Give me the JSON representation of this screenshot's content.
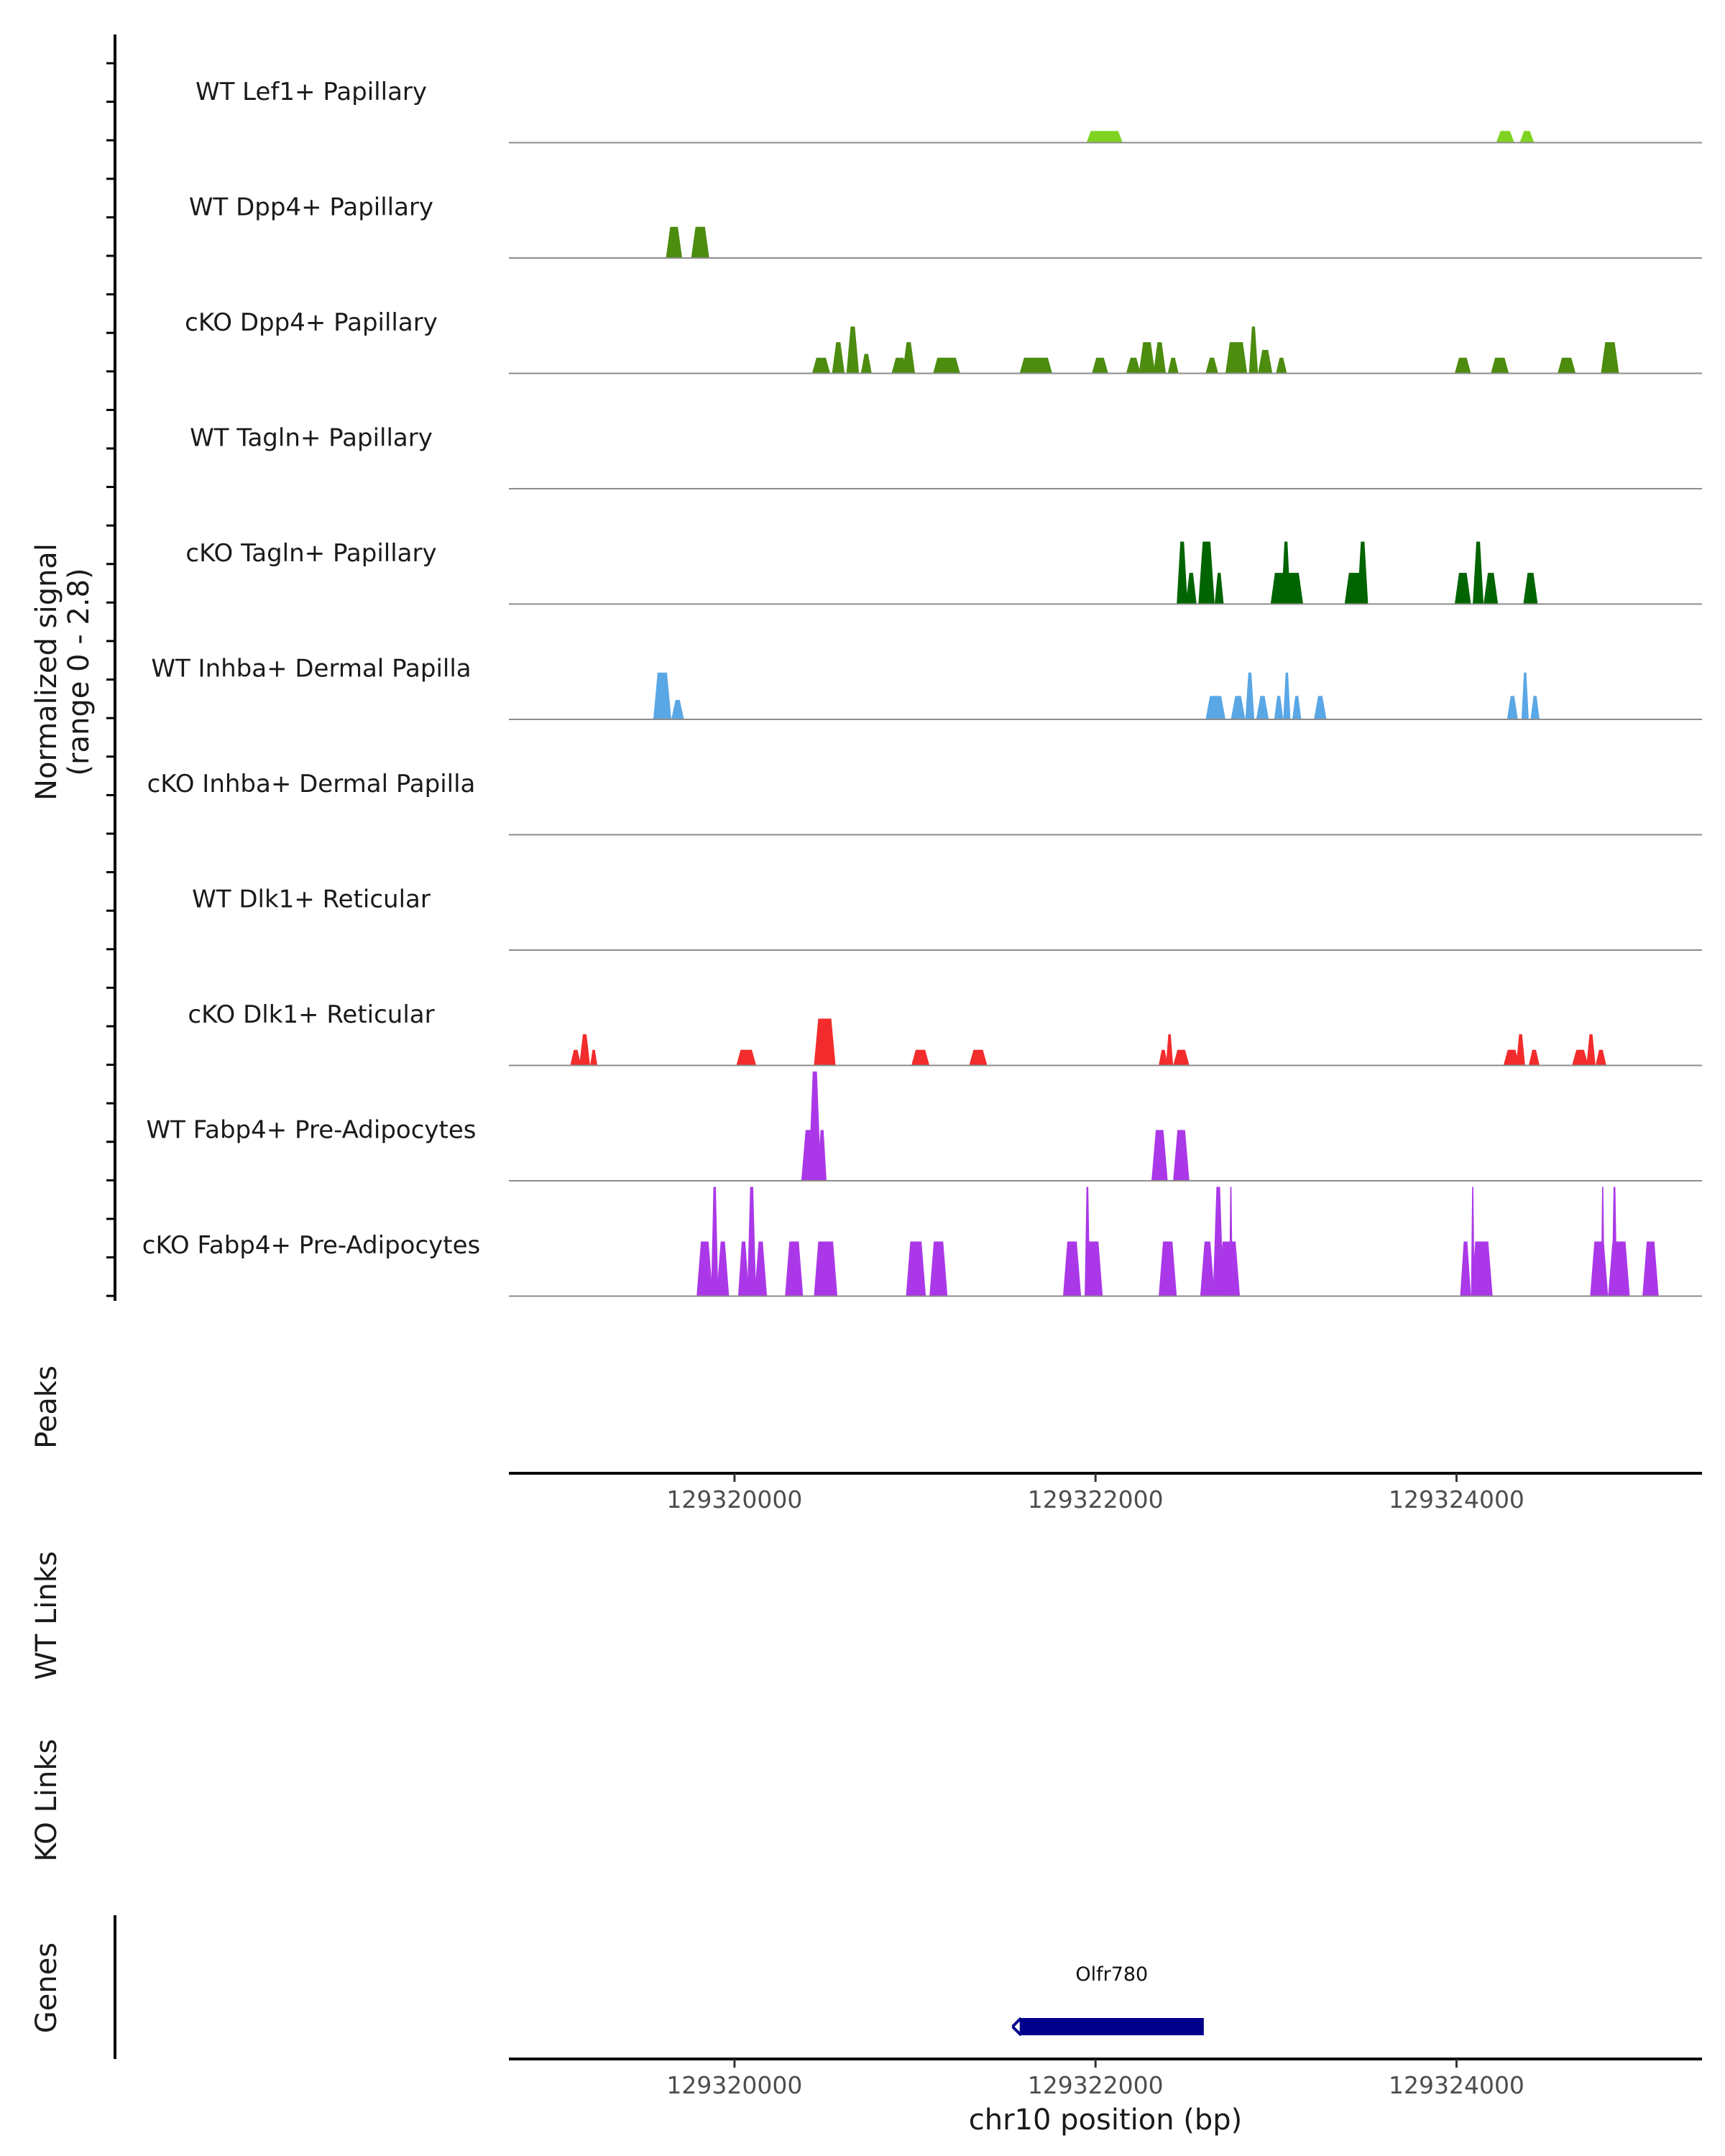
{
  "chart_data": {
    "type": "area",
    "title": "",
    "chromosome": "chr10",
    "xlim": [
      129318750,
      129325360
    ],
    "xlabel": "chr10 position (bp)",
    "ylabel": "Normalized signal\n(range 0 - 2.8)",
    "ylabel_line1": "Normalized signal",
    "ylabel_line2": "(range 0 - 2.8)",
    "ylim": [
      0,
      2.8
    ],
    "xticks": [
      129320000,
      129322000,
      129324000
    ],
    "xtick_labels": [
      "129320000",
      "129322000",
      "129324000"
    ],
    "tracks": [
      {
        "name": "WT Lef1+ Papillary",
        "color": "#7FD320",
        "peaks": [
          [
            129321950,
            129322150,
            0.3
          ],
          [
            129324220,
            129324320,
            0.3
          ],
          [
            129324350,
            129324430,
            0.3
          ]
        ]
      },
      {
        "name": "WT Dpp4+ Papillary",
        "color": "#4C8C0E",
        "peaks": [
          [
            129319620,
            129319710,
            0.8
          ],
          [
            129319760,
            129319860,
            0.8
          ]
        ]
      },
      {
        "name": "cKO Dpp4+ Papillary",
        "color": "#4C8C0E",
        "peaks": [
          [
            129320430,
            129320530,
            0.4
          ],
          [
            129320540,
            129320610,
            0.8
          ],
          [
            129320620,
            129320690,
            1.2
          ],
          [
            129320700,
            129320760,
            0.5
          ],
          [
            129320870,
            129320960,
            0.4
          ],
          [
            129320930,
            129321000,
            0.8
          ],
          [
            129321100,
            129321250,
            0.4
          ],
          [
            129321580,
            129321760,
            0.4
          ],
          [
            129321980,
            129322070,
            0.4
          ],
          [
            129322170,
            129322250,
            0.4
          ],
          [
            129322240,
            129322330,
            0.8
          ],
          [
            129322320,
            129322390,
            0.8
          ],
          [
            129322400,
            129322460,
            0.4
          ],
          [
            129322610,
            129322680,
            0.4
          ],
          [
            129322720,
            129322840,
            0.8
          ],
          [
            129322850,
            129322900,
            1.2
          ],
          [
            129322900,
            129322980,
            0.6
          ],
          [
            129323000,
            129323060,
            0.4
          ],
          [
            129323990,
            129324080,
            0.4
          ],
          [
            129324190,
            129324290,
            0.4
          ],
          [
            129324560,
            129324660,
            0.4
          ],
          [
            129324800,
            129324900,
            0.8
          ]
        ]
      },
      {
        "name": "WT Tagln+ Papillary",
        "color": "#006400",
        "peaks": []
      },
      {
        "name": "cKO Tagln+ Papillary",
        "color": "#006400",
        "peaks": [
          [
            129322450,
            129322510,
            1.6
          ],
          [
            129322500,
            129322560,
            0.8
          ],
          [
            129322570,
            129322660,
            1.6
          ],
          [
            129322660,
            129322710,
            0.8
          ],
          [
            129322970,
            129323150,
            0.8
          ],
          [
            129323030,
            129323080,
            1.6
          ],
          [
            129323380,
            129323500,
            0.8
          ],
          [
            129323450,
            129323510,
            1.6
          ],
          [
            129323990,
            129324080,
            0.8
          ],
          [
            129324090,
            129324150,
            1.6
          ],
          [
            129324150,
            129324230,
            0.8
          ],
          [
            129324370,
            129324450,
            0.8
          ]
        ]
      },
      {
        "name": "WT Inhba+ Dermal Papilla",
        "color": "#5AA7E6",
        "peaks": [
          [
            129319550,
            129319650,
            1.2
          ],
          [
            129319650,
            129319720,
            0.5
          ],
          [
            129322610,
            129322720,
            0.6
          ],
          [
            129322750,
            129322830,
            0.6
          ],
          [
            129322830,
            129322880,
            1.2
          ],
          [
            129322890,
            129322960,
            0.6
          ],
          [
            129322990,
            129323040,
            0.6
          ],
          [
            129323040,
            129323080,
            1.2
          ],
          [
            129323090,
            129323140,
            0.6
          ],
          [
            129323210,
            129323280,
            0.6
          ],
          [
            129324280,
            129324340,
            0.6
          ],
          [
            129324360,
            129324400,
            1.2
          ],
          [
            129324410,
            129324460,
            0.6
          ]
        ]
      },
      {
        "name": "cKO Inhba+ Dermal Papilla",
        "color": "#5AA7E6",
        "peaks": []
      },
      {
        "name": "WT Dlk1+ Reticular",
        "color": "#F22C2C",
        "peaks": []
      },
      {
        "name": "cKO Dlk1+ Reticular",
        "color": "#F22C2C",
        "peaks": [
          [
            129319090,
            129319150,
            0.4
          ],
          [
            129319140,
            129319200,
            0.8
          ],
          [
            129319200,
            129319240,
            0.4
          ],
          [
            129320010,
            129320120,
            0.4
          ],
          [
            129320440,
            129320560,
            1.2
          ],
          [
            129320980,
            129321080,
            0.4
          ],
          [
            129321300,
            129321400,
            0.4
          ],
          [
            129322350,
            129322400,
            0.4
          ],
          [
            129322390,
            129322430,
            0.8
          ],
          [
            129322430,
            129322520,
            0.4
          ],
          [
            129324260,
            129324350,
            0.4
          ],
          [
            129324330,
            129324380,
            0.8
          ],
          [
            129324400,
            129324460,
            0.4
          ],
          [
            129324640,
            129324730,
            0.4
          ],
          [
            129324720,
            129324770,
            0.8
          ],
          [
            129324770,
            129324830,
            0.4
          ]
        ]
      },
      {
        "name": "WT Fabp4+ Pre-Adipocytes",
        "color": "#AB38E8",
        "peaks": [
          [
            129320370,
            129320450,
            1.3
          ],
          [
            129320410,
            129320480,
            2.8
          ],
          [
            129320460,
            129320510,
            1.3
          ],
          [
            129322310,
            129322400,
            1.3
          ],
          [
            129322430,
            129322520,
            1.3
          ]
        ]
      },
      {
        "name": "cKO Fabp4+ Pre-Adipocytes",
        "color": "#AB38E8",
        "peaks": [
          [
            129319790,
            129319880,
            1.4
          ],
          [
            129319870,
            129319910,
            2.8
          ],
          [
            129319900,
            129319970,
            1.4
          ],
          [
            129320020,
            129320080,
            1.4
          ],
          [
            129320070,
            129320120,
            2.8
          ],
          [
            129320110,
            129320180,
            1.4
          ],
          [
            129320280,
            129320380,
            1.4
          ],
          [
            129320440,
            129320570,
            1.4
          ],
          [
            129320950,
            129321060,
            1.4
          ],
          [
            129321080,
            129321180,
            1.4
          ],
          [
            129321820,
            129321920,
            1.4
          ],
          [
            129321940,
            129321970,
            2.8
          ],
          [
            129321940,
            129322040,
            1.4
          ],
          [
            129322350,
            129322450,
            1.4
          ],
          [
            129322580,
            129322660,
            1.4
          ],
          [
            129322650,
            129322710,
            2.8
          ],
          [
            129322680,
            129322800,
            1.4
          ],
          [
            129322740,
            129322760,
            2.8
          ],
          [
            129324020,
            129324080,
            1.4
          ],
          [
            129324080,
            129324100,
            2.8
          ],
          [
            129324080,
            129324200,
            1.4
          ],
          [
            129324740,
            129324840,
            1.4
          ],
          [
            129324800,
            129324820,
            2.8
          ],
          [
            129324860,
            129324890,
            2.8
          ],
          [
            129324840,
            129324960,
            1.4
          ],
          [
            129325030,
            129325120,
            1.4
          ]
        ]
      }
    ],
    "panels": {
      "peaks_label": "Peaks",
      "wt_links_label": "WT Links",
      "ko_links_label": "KO Links",
      "genes_label": "Genes"
    },
    "genes": [
      {
        "name": "Olfr780",
        "start": 129321580,
        "end": 129322600,
        "strand": "-",
        "color": "#00008B"
      }
    ]
  }
}
